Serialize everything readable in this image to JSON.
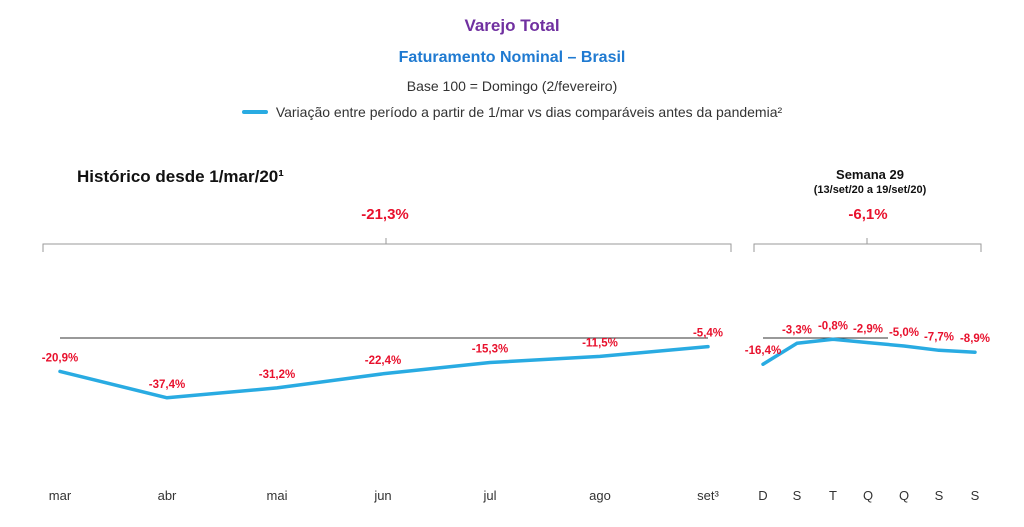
{
  "header": {
    "title": "Varejo Total",
    "subtitle": "Faturamento Nominal – Brasil",
    "base": "Base 100 = Domingo (2/fevereiro)",
    "legend": "Variação entre período a partir de 1/mar vs dias comparáveis antes da pandemia²"
  },
  "history": {
    "title": "Histórico desde 1/mar/20¹",
    "total_label": "-21,3%"
  },
  "week": {
    "title": "Semana 29",
    "range": "(13/set/20 a 19/set/20)",
    "total_label": "-6,1%"
  },
  "colors": {
    "line": "#29abe2",
    "labels": "#e8112d",
    "title": "#7030a0",
    "subtitle": "#1f7ad1"
  },
  "chart_data": [
    {
      "type": "line",
      "categories": [
        "mar",
        "abr",
        "mai",
        "jun",
        "jul",
        "ago",
        "set³"
      ],
      "values": [
        -20.9,
        -37.4,
        -31.2,
        -22.4,
        -15.3,
        -11.5,
        -5.4
      ],
      "data_labels": [
        "-20,9%",
        "-37,4%",
        "-31,2%",
        "-22,4%",
        "-15,3%",
        "-11,5%",
        "-5,4%"
      ],
      "reference_line": 0,
      "grid": false
    },
    {
      "type": "line",
      "categories": [
        "D",
        "S",
        "T",
        "Q",
        "Q",
        "S",
        "S"
      ],
      "values": [
        -16.4,
        -3.3,
        -0.8,
        -2.9,
        -5.0,
        -7.7,
        -8.9
      ],
      "data_labels": [
        "-16,4%",
        "-3,3%",
        "-0,8%",
        "-2,9%",
        "-5,0%",
        "-7,7%",
        "-8,9%"
      ],
      "reference_line": 0,
      "grid": false
    }
  ]
}
